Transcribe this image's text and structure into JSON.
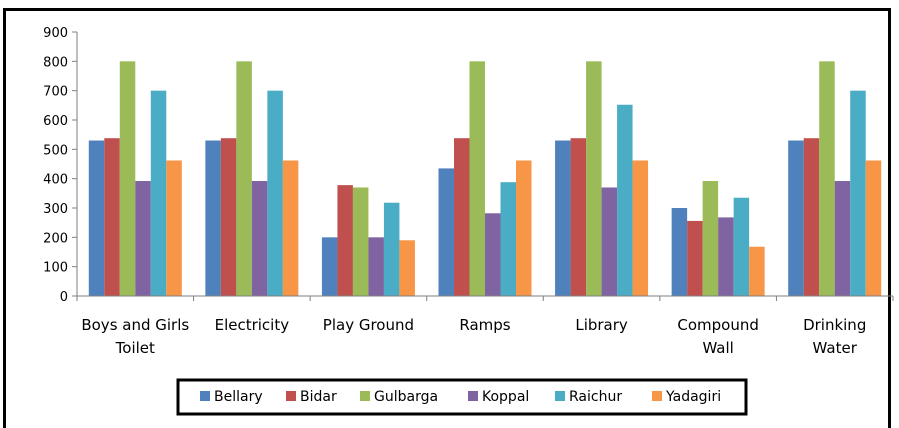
{
  "chart_data": {
    "type": "bar",
    "categories": [
      [
        "Boys  and Girls",
        "Toilet"
      ],
      [
        "Electricity"
      ],
      [
        "Play Ground"
      ],
      [
        "Ramps"
      ],
      [
        "Library"
      ],
      [
        "Compound",
        "Wall"
      ],
      [
        "Drinking",
        "Water"
      ]
    ],
    "series": [
      {
        "name": "Bellary",
        "color": "#4F81BD",
        "values": [
          530,
          530,
          200,
          435,
          530,
          300,
          530
        ]
      },
      {
        "name": "Bidar",
        "color": "#C0504D",
        "values": [
          538,
          538,
          378,
          538,
          538,
          256,
          538
        ]
      },
      {
        "name": "Gulbarga",
        "color": "#9BBB59",
        "values": [
          800,
          800,
          370,
          800,
          800,
          392,
          800
        ]
      },
      {
        "name": "Koppal",
        "color": "#8064A2",
        "values": [
          392,
          392,
          200,
          282,
          370,
          268,
          392
        ]
      },
      {
        "name": "Raichur",
        "color": "#4BACC6",
        "values": [
          700,
          700,
          318,
          388,
          652,
          335,
          700
        ]
      },
      {
        "name": "Yadagiri",
        "color": "#F79646",
        "values": [
          462,
          462,
          190,
          462,
          462,
          168,
          462
        ]
      }
    ],
    "ylim": [
      0,
      900
    ],
    "yticks": [
      0,
      100,
      200,
      300,
      400,
      500,
      600,
      700,
      800,
      900
    ],
    "grid": false,
    "legend": "bottom"
  }
}
